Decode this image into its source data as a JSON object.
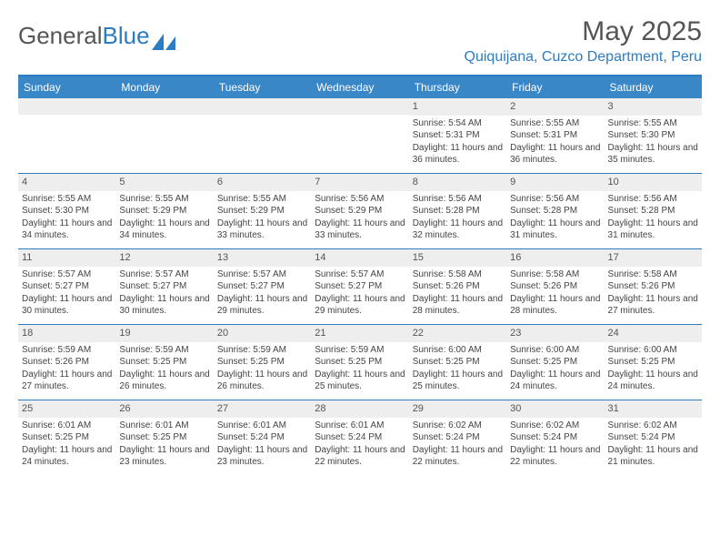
{
  "logo": {
    "text_gray": "General",
    "text_blue": "Blue"
  },
  "header": {
    "month": "May 2025",
    "location": "Quiquijana, Cuzco Department, Peru"
  },
  "colors": {
    "accent": "#2b7cc0",
    "header_bg": "#3a87c8",
    "daynum_bg": "#eeeeee",
    "text": "#444444",
    "title_text": "#555555"
  },
  "day_names": [
    "Sunday",
    "Monday",
    "Tuesday",
    "Wednesday",
    "Thursday",
    "Friday",
    "Saturday"
  ],
  "weeks": [
    [
      {
        "day": "",
        "sunrise": "",
        "sunset": "",
        "daylight": ""
      },
      {
        "day": "",
        "sunrise": "",
        "sunset": "",
        "daylight": ""
      },
      {
        "day": "",
        "sunrise": "",
        "sunset": "",
        "daylight": ""
      },
      {
        "day": "",
        "sunrise": "",
        "sunset": "",
        "daylight": ""
      },
      {
        "day": "1",
        "sunrise": "Sunrise: 5:54 AM",
        "sunset": "Sunset: 5:31 PM",
        "daylight": "Daylight: 11 hours and 36 minutes."
      },
      {
        "day": "2",
        "sunrise": "Sunrise: 5:55 AM",
        "sunset": "Sunset: 5:31 PM",
        "daylight": "Daylight: 11 hours and 36 minutes."
      },
      {
        "day": "3",
        "sunrise": "Sunrise: 5:55 AM",
        "sunset": "Sunset: 5:30 PM",
        "daylight": "Daylight: 11 hours and 35 minutes."
      }
    ],
    [
      {
        "day": "4",
        "sunrise": "Sunrise: 5:55 AM",
        "sunset": "Sunset: 5:30 PM",
        "daylight": "Daylight: 11 hours and 34 minutes."
      },
      {
        "day": "5",
        "sunrise": "Sunrise: 5:55 AM",
        "sunset": "Sunset: 5:29 PM",
        "daylight": "Daylight: 11 hours and 34 minutes."
      },
      {
        "day": "6",
        "sunrise": "Sunrise: 5:55 AM",
        "sunset": "Sunset: 5:29 PM",
        "daylight": "Daylight: 11 hours and 33 minutes."
      },
      {
        "day": "7",
        "sunrise": "Sunrise: 5:56 AM",
        "sunset": "Sunset: 5:29 PM",
        "daylight": "Daylight: 11 hours and 33 minutes."
      },
      {
        "day": "8",
        "sunrise": "Sunrise: 5:56 AM",
        "sunset": "Sunset: 5:28 PM",
        "daylight": "Daylight: 11 hours and 32 minutes."
      },
      {
        "day": "9",
        "sunrise": "Sunrise: 5:56 AM",
        "sunset": "Sunset: 5:28 PM",
        "daylight": "Daylight: 11 hours and 31 minutes."
      },
      {
        "day": "10",
        "sunrise": "Sunrise: 5:56 AM",
        "sunset": "Sunset: 5:28 PM",
        "daylight": "Daylight: 11 hours and 31 minutes."
      }
    ],
    [
      {
        "day": "11",
        "sunrise": "Sunrise: 5:57 AM",
        "sunset": "Sunset: 5:27 PM",
        "daylight": "Daylight: 11 hours and 30 minutes."
      },
      {
        "day": "12",
        "sunrise": "Sunrise: 5:57 AM",
        "sunset": "Sunset: 5:27 PM",
        "daylight": "Daylight: 11 hours and 30 minutes."
      },
      {
        "day": "13",
        "sunrise": "Sunrise: 5:57 AM",
        "sunset": "Sunset: 5:27 PM",
        "daylight": "Daylight: 11 hours and 29 minutes."
      },
      {
        "day": "14",
        "sunrise": "Sunrise: 5:57 AM",
        "sunset": "Sunset: 5:27 PM",
        "daylight": "Daylight: 11 hours and 29 minutes."
      },
      {
        "day": "15",
        "sunrise": "Sunrise: 5:58 AM",
        "sunset": "Sunset: 5:26 PM",
        "daylight": "Daylight: 11 hours and 28 minutes."
      },
      {
        "day": "16",
        "sunrise": "Sunrise: 5:58 AM",
        "sunset": "Sunset: 5:26 PM",
        "daylight": "Daylight: 11 hours and 28 minutes."
      },
      {
        "day": "17",
        "sunrise": "Sunrise: 5:58 AM",
        "sunset": "Sunset: 5:26 PM",
        "daylight": "Daylight: 11 hours and 27 minutes."
      }
    ],
    [
      {
        "day": "18",
        "sunrise": "Sunrise: 5:59 AM",
        "sunset": "Sunset: 5:26 PM",
        "daylight": "Daylight: 11 hours and 27 minutes."
      },
      {
        "day": "19",
        "sunrise": "Sunrise: 5:59 AM",
        "sunset": "Sunset: 5:25 PM",
        "daylight": "Daylight: 11 hours and 26 minutes."
      },
      {
        "day": "20",
        "sunrise": "Sunrise: 5:59 AM",
        "sunset": "Sunset: 5:25 PM",
        "daylight": "Daylight: 11 hours and 26 minutes."
      },
      {
        "day": "21",
        "sunrise": "Sunrise: 5:59 AM",
        "sunset": "Sunset: 5:25 PM",
        "daylight": "Daylight: 11 hours and 25 minutes."
      },
      {
        "day": "22",
        "sunrise": "Sunrise: 6:00 AM",
        "sunset": "Sunset: 5:25 PM",
        "daylight": "Daylight: 11 hours and 25 minutes."
      },
      {
        "day": "23",
        "sunrise": "Sunrise: 6:00 AM",
        "sunset": "Sunset: 5:25 PM",
        "daylight": "Daylight: 11 hours and 24 minutes."
      },
      {
        "day": "24",
        "sunrise": "Sunrise: 6:00 AM",
        "sunset": "Sunset: 5:25 PM",
        "daylight": "Daylight: 11 hours and 24 minutes."
      }
    ],
    [
      {
        "day": "25",
        "sunrise": "Sunrise: 6:01 AM",
        "sunset": "Sunset: 5:25 PM",
        "daylight": "Daylight: 11 hours and 24 minutes."
      },
      {
        "day": "26",
        "sunrise": "Sunrise: 6:01 AM",
        "sunset": "Sunset: 5:25 PM",
        "daylight": "Daylight: 11 hours and 23 minutes."
      },
      {
        "day": "27",
        "sunrise": "Sunrise: 6:01 AM",
        "sunset": "Sunset: 5:24 PM",
        "daylight": "Daylight: 11 hours and 23 minutes."
      },
      {
        "day": "28",
        "sunrise": "Sunrise: 6:01 AM",
        "sunset": "Sunset: 5:24 PM",
        "daylight": "Daylight: 11 hours and 22 minutes."
      },
      {
        "day": "29",
        "sunrise": "Sunrise: 6:02 AM",
        "sunset": "Sunset: 5:24 PM",
        "daylight": "Daylight: 11 hours and 22 minutes."
      },
      {
        "day": "30",
        "sunrise": "Sunrise: 6:02 AM",
        "sunset": "Sunset: 5:24 PM",
        "daylight": "Daylight: 11 hours and 22 minutes."
      },
      {
        "day": "31",
        "sunrise": "Sunrise: 6:02 AM",
        "sunset": "Sunset: 5:24 PM",
        "daylight": "Daylight: 11 hours and 21 minutes."
      }
    ]
  ]
}
